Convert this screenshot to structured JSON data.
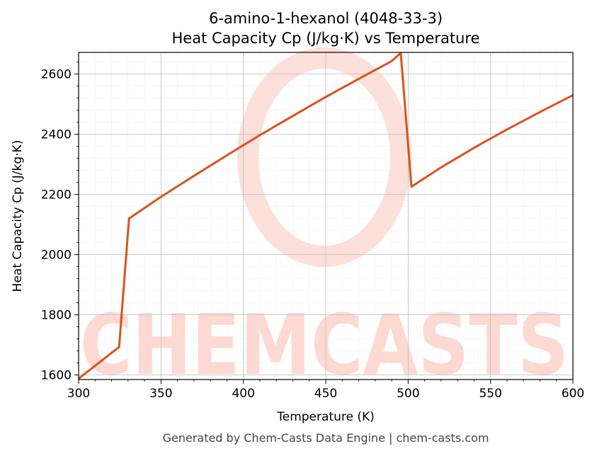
{
  "chart_data": {
    "type": "line",
    "title": "6-amino-1-hexanol (4048-33-3)",
    "subtitle": "Heat Capacity Cp (J/kg·K) vs Temperature",
    "xlabel": "Temperature (K)",
    "ylabel": "Heat Capacity Cp (J/kg·K)",
    "xlim": [
      300,
      600
    ],
    "ylim": [
      1585,
      2672
    ],
    "xticks": [
      300,
      350,
      400,
      450,
      500,
      550,
      600
    ],
    "yticks": [
      1600,
      1800,
      2000,
      2200,
      2400,
      2600
    ],
    "grid": true,
    "line_color": "#d9531e",
    "series": [
      {
        "x": [
          300,
          324.6,
          330.6,
          350,
          370,
          390,
          410,
          430,
          450,
          470,
          490,
          495.5,
          502,
          520,
          540,
          560,
          580,
          600
        ],
        "y": [
          1588,
          1693,
          2120,
          2192,
          2262,
          2330,
          2397,
          2461,
          2524,
          2584,
          2643,
          2670,
          2226,
          2290,
          2355,
          2416,
          2474,
          2530
        ]
      }
    ]
  },
  "watermark": "CHEMCASTS",
  "footer": "Generated by Chem-Casts Data Engine | chem-casts.com"
}
